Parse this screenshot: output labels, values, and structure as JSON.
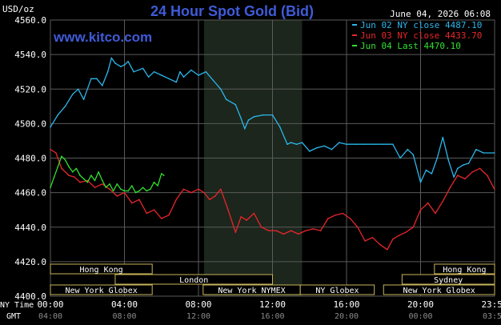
{
  "header": {
    "unit": "USD/oz",
    "title": "24 Hour Spot Gold (Bid)",
    "date": "June 04, 2026 06:08",
    "watermark": "www.kitco.com"
  },
  "colors": {
    "background": "#000000",
    "grid": "#5a5a5a",
    "title": "#3f5bd8",
    "watermark": "#3f5bd8",
    "text": "#ffffff",
    "series_jun02": "#2ab7ec",
    "series_jun03": "#e8262a",
    "series_jun04": "#30e030",
    "session_border": "#c8b45a",
    "market_closed_shade": "#1c261c"
  },
  "time_axis": {
    "ny_label": "NY Time",
    "gmt_label": "GMT"
  },
  "sessions": [
    {
      "name": "Hong Kong",
      "row": 0,
      "start": 0,
      "end": 5.5
    },
    {
      "name": "Hong Kong",
      "row": 0,
      "start": 20.75,
      "end": 24
    },
    {
      "name": "London",
      "row": 1,
      "start": 3.5,
      "end": 12
    },
    {
      "name": "Sydney",
      "row": 1,
      "start": 19,
      "end": 24
    },
    {
      "name": "New York Globex",
      "row": 2,
      "start": 0,
      "end": 5.5
    },
    {
      "name": "New York NYMEX",
      "row": 2,
      "start": 8.25,
      "end": 13.5
    },
    {
      "name": "NY Globex",
      "row": 2,
      "start": 13.5,
      "end": 17.5
    },
    {
      "name": "New York Globex",
      "row": 2,
      "start": 18,
      "end": 24
    }
  ],
  "chart_data": {
    "type": "line",
    "title": "24 Hour Spot Gold (Bid)",
    "ylabel": "USD/oz",
    "xlim": [
      0,
      24
    ],
    "ylim": [
      4400,
      4560
    ],
    "yticks": [
      4400,
      4420,
      4440,
      4460,
      4480,
      4500,
      4520,
      4540,
      4560
    ],
    "ytick_labels": [
      "4400.0",
      "4420.0",
      "4440.0",
      "4460.0",
      "4480.0",
      "4500.0",
      "4520.0",
      "4540.0",
      "4560.0"
    ],
    "xticks": [
      0,
      4,
      8,
      12,
      16,
      20,
      24
    ],
    "xtick_labels_ny": [
      "00:00",
      "04:00",
      "08:00",
      "12:00",
      "16:00",
      "20:00",
      "23:59"
    ],
    "xtick_labels_gmt": [
      "04:00",
      "08:00",
      "12:00",
      "16:00",
      "20:00",
      "00:00",
      "03:59"
    ],
    "grid": true,
    "legend_position": "top-right",
    "shaded_x_range": [
      8.3,
      13.6
    ],
    "series": [
      {
        "name": "Jun 02 NY close 4487.10",
        "x": [
          0,
          0.4,
          0.8,
          1.2,
          1.5,
          1.8,
          2.2,
          2.5,
          2.8,
          3.1,
          3.3,
          3.5,
          3.8,
          4.0,
          4.2,
          4.5,
          5.0,
          5.3,
          5.6,
          6.0,
          6.4,
          6.8,
          7.0,
          7.2,
          7.6,
          8.0,
          8.4,
          8.8,
          9.2,
          9.5,
          10.0,
          10.3,
          10.5,
          10.7,
          11.0,
          11.5,
          12.0,
          12.4,
          12.8,
          13.0,
          13.3,
          13.6,
          14.0,
          14.4,
          14.8,
          15.2,
          15.6,
          16.0,
          16.5,
          17.0,
          17.5,
          18.0,
          18.5,
          18.9,
          19.3,
          19.6,
          20.0,
          20.3,
          20.6,
          20.9,
          21.2,
          21.5,
          21.8,
          22.0,
          22.3,
          22.6,
          23.0,
          23.4,
          23.99
        ],
        "y": [
          4498,
          4505,
          4510,
          4517,
          4520,
          4514,
          4526,
          4526,
          4522,
          4530,
          4538,
          4535,
          4533,
          4534,
          4536,
          4530,
          4532,
          4527,
          4530,
          4528,
          4526,
          4524,
          4530,
          4527,
          4531,
          4528,
          4530,
          4525,
          4520,
          4514,
          4511,
          4503,
          4497,
          4502,
          4504,
          4505,
          4505,
          4498,
          4488,
          4489,
          4488,
          4489,
          4484,
          4486,
          4487,
          4485,
          4489,
          4488,
          4488,
          4488,
          4488,
          4488,
          4488,
          4480,
          4485,
          4482,
          4466,
          4473,
          4471,
          4480,
          4492,
          4479,
          4469,
          4474,
          4476,
          4477,
          4485,
          4483,
          4483
        ]
      },
      {
        "name": "Jun 03 NY close 4433.70",
        "x": [
          0,
          0.3,
          0.6,
          1.0,
          1.3,
          1.6,
          2.0,
          2.4,
          2.8,
          3.2,
          3.6,
          4.0,
          4.4,
          4.8,
          5.2,
          5.6,
          6.0,
          6.4,
          6.8,
          7.2,
          7.6,
          8.0,
          8.3,
          8.6,
          8.9,
          9.2,
          9.6,
          10.0,
          10.3,
          10.6,
          11.0,
          11.4,
          11.8,
          12.2,
          12.6,
          13.0,
          13.4,
          13.8,
          14.2,
          14.6,
          15.0,
          15.4,
          15.8,
          16.2,
          16.6,
          17.0,
          17.4,
          17.8,
          18.2,
          18.5,
          18.8,
          19.2,
          19.6,
          20.0,
          20.4,
          20.8,
          21.2,
          21.6,
          22.0,
          22.4,
          22.8,
          23.2,
          23.6,
          23.99
        ],
        "y": [
          4485,
          4483,
          4474,
          4470,
          4469,
          4466,
          4467,
          4463,
          4465,
          4462,
          4458,
          4460,
          4454,
          4456,
          4448,
          4450,
          4445,
          4447,
          4456,
          4462,
          4460,
          4462,
          4460,
          4456,
          4458,
          4462,
          4450,
          4437,
          4446,
          4444,
          4448,
          4440,
          4438,
          4438,
          4436,
          4438,
          4436,
          4438,
          4439,
          4438,
          4445,
          4447,
          4448,
          4445,
          4440,
          4432,
          4434,
          4430,
          4427,
          4433,
          4435,
          4437,
          4440,
          4450,
          4454,
          4448,
          4455,
          4463,
          4470,
          4468,
          4472,
          4474,
          4470,
          4462
        ]
      },
      {
        "name": "Jun 04 Last 4470.10",
        "x": [
          0,
          0.2,
          0.4,
          0.6,
          0.8,
          1.0,
          1.2,
          1.4,
          1.6,
          1.8,
          2.0,
          2.2,
          2.4,
          2.6,
          2.8,
          3.0,
          3.2,
          3.4,
          3.6,
          3.8,
          4.0,
          4.2,
          4.4,
          4.6,
          4.8,
          5.0,
          5.2,
          5.4,
          5.6,
          5.8,
          6.0,
          6.13
        ],
        "y": [
          4463,
          4469,
          4475,
          4481,
          4479,
          4475,
          4472,
          4474,
          4470,
          4468,
          4466,
          4470,
          4467,
          4472,
          4467,
          4463,
          4465,
          4461,
          4465,
          4462,
          4461,
          4461,
          4464,
          4460,
          4461,
          4463,
          4461,
          4462,
          4466,
          4464,
          4471,
          4470
        ]
      }
    ]
  }
}
